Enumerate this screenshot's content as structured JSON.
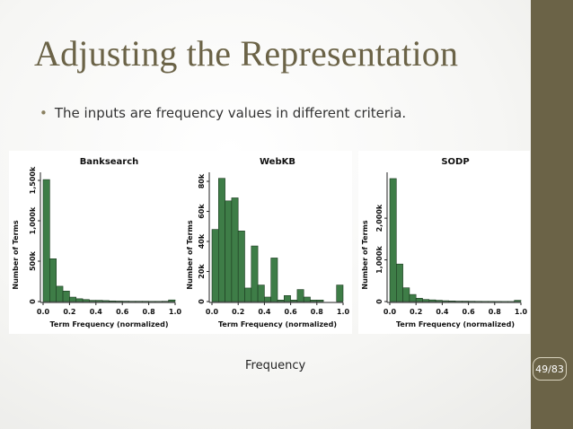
{
  "slide": {
    "title": "Adjusting the Representation",
    "bullet": "The inputs are frequency values in different criteria.",
    "caption": "Frequency",
    "page_number": "49/83"
  },
  "colors": {
    "bar_fill": "#3e7d47",
    "bar_stroke": "#1c3a20",
    "title": "#6b6347",
    "sidebar": "#6b6347"
  },
  "chart_data": [
    {
      "type": "bar",
      "title": "Banksearch",
      "xlabel": "Term Frequency (normalized)",
      "ylabel": "Number of Terms",
      "bin_width": 0.05,
      "x": [
        0.0,
        0.05,
        0.1,
        0.15,
        0.2,
        0.25,
        0.3,
        0.35,
        0.4,
        0.45,
        0.5,
        0.55,
        0.6,
        0.65,
        0.7,
        0.75,
        0.8,
        0.85,
        0.9,
        0.95
      ],
      "values": [
        1510000,
        530000,
        190000,
        130000,
        55000,
        35000,
        25000,
        15000,
        15000,
        12000,
        8000,
        6000,
        5000,
        4000,
        4000,
        4000,
        3000,
        3000,
        4000,
        20000
      ],
      "xlim": [
        0,
        1
      ],
      "ylim": [
        0,
        1600000
      ],
      "x_ticks": [
        "0.0",
        "0.2",
        "0.4",
        "0.6",
        "0.8",
        "1.0"
      ],
      "y_tick_values": [
        0,
        500000,
        1000000,
        1500000
      ],
      "y_tick_labels": [
        "0",
        "500k",
        "1,000k",
        "1,500k"
      ]
    },
    {
      "type": "bar",
      "title": "WebKB",
      "xlabel": "Term Frequency (normalized)",
      "ylabel": "Number of Terms",
      "bin_width": 0.05,
      "x": [
        0.0,
        0.05,
        0.1,
        0.15,
        0.2,
        0.25,
        0.3,
        0.35,
        0.4,
        0.45,
        0.5,
        0.55,
        0.6,
        0.65,
        0.7,
        0.75,
        0.8,
        0.85,
        0.9,
        0.95
      ],
      "values": [
        48000,
        82000,
        67000,
        69000,
        47000,
        9000,
        37000,
        11000,
        3000,
        29000,
        1000,
        4000,
        1000,
        8000,
        3000,
        1000,
        1000,
        0,
        0,
        11000
      ],
      "xlim": [
        0,
        1
      ],
      "ylim": [
        0,
        86000
      ],
      "x_ticks": [
        "0.0",
        "0.2",
        "0.4",
        "0.6",
        "0.8",
        "1.0"
      ],
      "y_tick_values": [
        0,
        20000,
        40000,
        60000,
        80000
      ],
      "y_tick_labels": [
        "0",
        "20k",
        "40k",
        "60k",
        "80k"
      ]
    },
    {
      "type": "bar",
      "title": "SODP",
      "xlabel": "Term Frequency (normalized)",
      "ylabel": "Number of Terms",
      "bin_width": 0.05,
      "x": [
        0.0,
        0.05,
        0.1,
        0.15,
        0.2,
        0.25,
        0.3,
        0.35,
        0.4,
        0.45,
        0.5,
        0.55,
        0.6,
        0.65,
        0.7,
        0.75,
        0.8,
        0.85,
        0.9,
        0.95
      ],
      "values": [
        2950000,
        900000,
        330000,
        170000,
        80000,
        50000,
        40000,
        30000,
        20000,
        15000,
        10000,
        10000,
        8000,
        6000,
        5000,
        5000,
        4000,
        3000,
        3000,
        30000
      ],
      "xlim": [
        0,
        1
      ],
      "ylim": [
        0,
        3100000
      ],
      "x_ticks": [
        "0.0",
        "0.2",
        "0.4",
        "0.6",
        "0.8",
        "1.0"
      ],
      "y_tick_values": [
        0,
        1000000,
        2000000
      ],
      "y_tick_labels": [
        "0",
        "1,000k",
        "2,000k"
      ]
    }
  ]
}
